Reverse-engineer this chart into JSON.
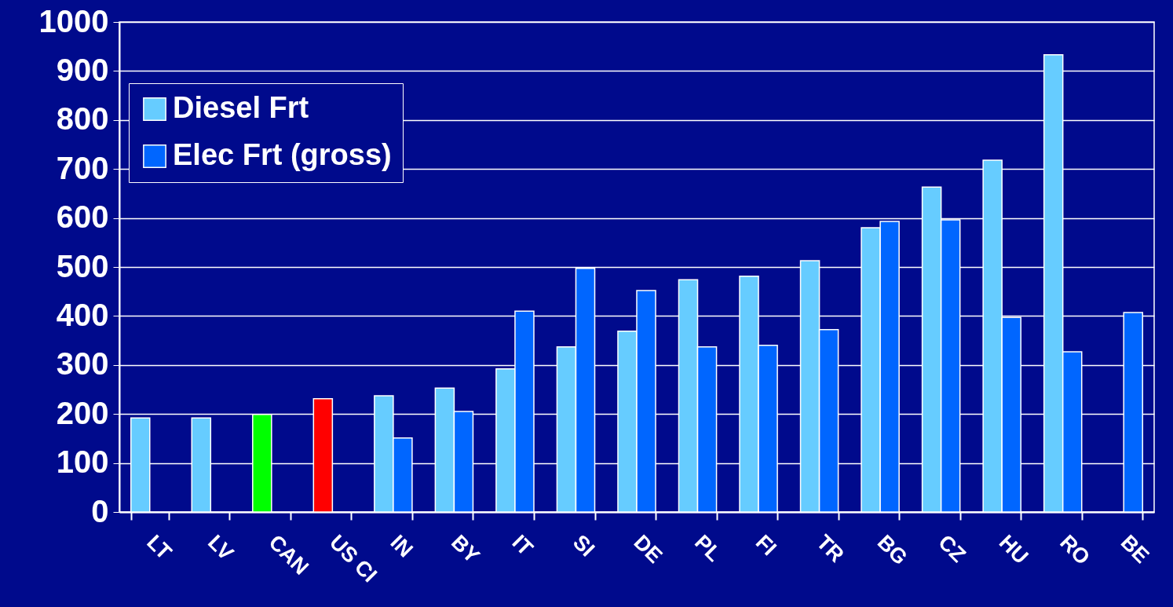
{
  "chart_data": {
    "type": "bar",
    "categories": [
      "LT",
      "LV",
      "CAN",
      "US CI",
      "IN",
      "BY",
      "IT",
      "SI",
      "DE",
      "PL",
      "FI",
      "TR",
      "BG",
      "CZ",
      "HU",
      "RO",
      "BE"
    ],
    "series": [
      {
        "name": "Diesel Frt",
        "color": "#66ccff",
        "colors": [
          "#66ccff",
          "#66ccff",
          "#00ff00",
          "#ff0000",
          "#66ccff",
          "#66ccff",
          "#66ccff",
          "#66ccff",
          "#66ccff",
          "#66ccff",
          "#66ccff",
          "#66ccff",
          "#66ccff",
          "#66ccff",
          "#66ccff",
          "#66ccff",
          "#66ccff"
        ],
        "values": [
          192,
          192,
          199,
          231,
          237,
          253,
          292,
          337,
          369,
          474,
          481,
          513,
          580,
          663,
          718,
          933,
          null
        ]
      },
      {
        "name": "Elec Frt (gross)",
        "color": "#0066ff",
        "values": [
          null,
          null,
          null,
          null,
          151,
          205,
          410,
          497,
          452,
          337,
          340,
          372,
          593,
          596,
          397,
          327,
          407
        ]
      }
    ],
    "ylim": [
      0,
      1000
    ],
    "yticks": [
      0,
      100,
      200,
      300,
      400,
      500,
      600,
      700,
      800,
      900,
      1000
    ],
    "grid": "y",
    "legend": "top left"
  }
}
